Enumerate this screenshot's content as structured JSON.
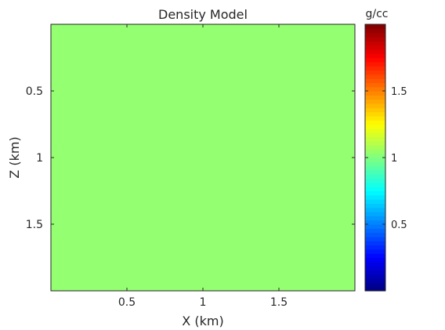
{
  "chart_data": {
    "type": "heatmap",
    "title": "Density Model",
    "xlabel": "X (km)",
    "ylabel": "Z (km)",
    "xlim": [
      0,
      2
    ],
    "ylim": [
      0,
      2
    ],
    "y_reversed": true,
    "x_ticks": [
      0.5,
      1,
      1.5
    ],
    "x_tick_labels": [
      "0.5",
      "1",
      "1.5"
    ],
    "y_ticks": [
      0.5,
      1,
      1.5
    ],
    "y_tick_labels": [
      "0.5",
      "1",
      "1.5"
    ],
    "grid": false,
    "values": [
      [
        1.0
      ]
    ],
    "field_color": "#94ff70",
    "colorbar": {
      "label": "g/cc",
      "range": [
        0,
        2
      ],
      "ticks": [
        0.5,
        1,
        1.5
      ],
      "tick_labels": [
        "0.5",
        "1",
        "1.5"
      ],
      "colormap": "jet",
      "levels": 64
    }
  }
}
